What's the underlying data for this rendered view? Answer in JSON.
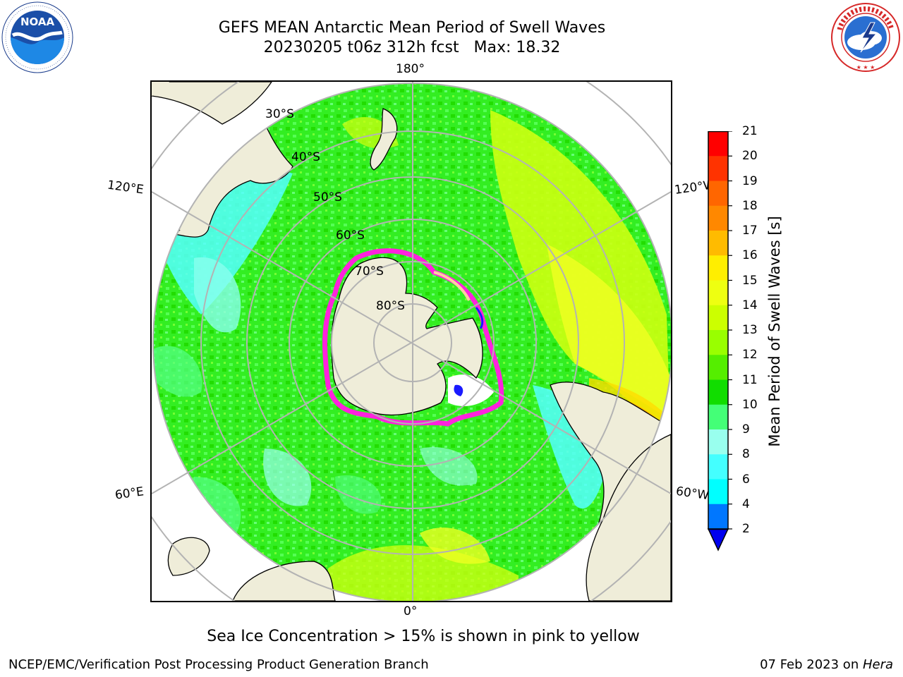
{
  "header": {
    "title_line1": "GEFS MEAN Antarctic Mean Period of Swell Waves",
    "title_line2": "20230205 t06z 312h fcst   Max: 18.32"
  },
  "logos": {
    "left": {
      "name": "noara-logo",
      "text": "NOAA",
      "ring_text": "NATIONAL OCEANIC AND ATMOSPHERIC ADMINISTRATION · U.S. DEPARTMENT OF COMMERCE"
    },
    "right": {
      "name": "nws-logo",
      "ring_text": "NATIONAL WEATHER SERVICE"
    }
  },
  "map": {
    "projection": "south-polar-stereographic",
    "lon_labels": {
      "top": "180°",
      "bottom": "0°",
      "left_upper": "120°E",
      "right_upper": "120°W",
      "left_lower": "60°E",
      "right_lower": "60°W"
    },
    "lat_labels": [
      "30°S",
      "40°S",
      "50°S",
      "60°S",
      "70°S",
      "80°S"
    ],
    "land_color": "#efedd9",
    "ocean_base_color": "#33ee22",
    "sea_ice_colors": [
      "#ff22dd",
      "#ffffff",
      "#ffd0a0",
      "#1a1aff"
    ]
  },
  "colorbar": {
    "label": "Mean Period of Swell Waves [s]",
    "ticks": [
      "21",
      "20",
      "19",
      "18",
      "17",
      "16",
      "15",
      "14",
      "13",
      "12",
      "11",
      "10",
      "9",
      "8",
      "6",
      "4",
      "2"
    ],
    "colors": [
      "#ff0000",
      "#ff3300",
      "#ff6600",
      "#ff8800",
      "#ffbb00",
      "#ffee00",
      "#eeff11",
      "#ccff00",
      "#99ff00",
      "#55ee00",
      "#11dd00",
      "#44ff77",
      "#99ffee",
      "#44ffff",
      "#00ffff",
      "#0077ff",
      "#0000ee"
    ]
  },
  "footer": {
    "note": "Sea Ice Concentration > 15% is shown in pink to yellow",
    "credit": "NCEP/EMC/Verification Post Processing Product Generation Branch",
    "date_prefix": "07 Feb 2023 on ",
    "date_host": "Hera"
  }
}
